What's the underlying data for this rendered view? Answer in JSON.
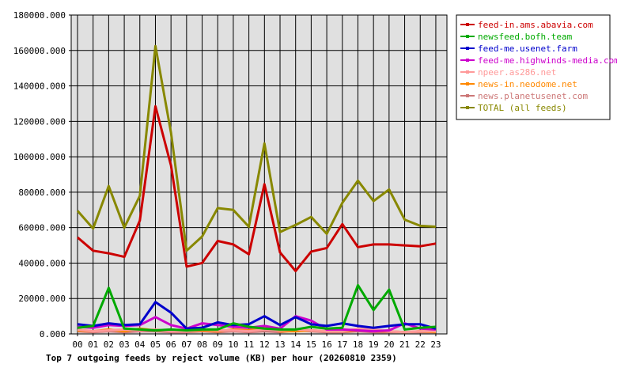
{
  "chart_data": {
    "type": "line",
    "title": "Top 7 outgoing feeds by reject volume (KB) per hour (20260810 2359)",
    "xlabel": "",
    "ylabel": "",
    "ylim": [
      0,
      180000
    ],
    "yticks": [
      "0.000",
      "20000.000",
      "40000.000",
      "60000.000",
      "80000.000",
      "100000.000",
      "120000.000",
      "140000.000",
      "160000.000",
      "180000.000"
    ],
    "x": [
      "00",
      "01",
      "02",
      "03",
      "04",
      "05",
      "06",
      "07",
      "08",
      "09",
      "10",
      "11",
      "12",
      "13",
      "14",
      "15",
      "16",
      "17",
      "18",
      "19",
      "20",
      "21",
      "22",
      "23"
    ],
    "grid": true,
    "legend_position": "right",
    "series": [
      {
        "name": "feed-in.ams.abavia.com",
        "color": "#cc0000",
        "values": [
          54500,
          47000,
          45500,
          43500,
          64000,
          128500,
          95000,
          38000,
          40000,
          52500,
          50500,
          45000,
          84500,
          46000,
          35500,
          46500,
          48500,
          62000,
          49000,
          50500,
          50500,
          50000,
          49500,
          51000
        ]
      },
      {
        "name": "newsfeed.bofh.team",
        "color": "#00aa00",
        "values": [
          3500,
          4500,
          26000,
          3000,
          2500,
          2000,
          2500,
          2000,
          2500,
          2500,
          6000,
          4000,
          3000,
          2500,
          2500,
          4000,
          3000,
          3500,
          27500,
          13500,
          25000,
          2500,
          3500,
          4000
        ]
      },
      {
        "name": "feed-me.usenet.farm",
        "color": "#0000cc",
        "values": [
          5500,
          4500,
          6000,
          5000,
          5500,
          18000,
          12000,
          3000,
          3500,
          6500,
          5000,
          5500,
          10000,
          5000,
          9500,
          5500,
          4500,
          6000,
          4500,
          3500,
          4500,
          5500,
          5500,
          3000
        ]
      },
      {
        "name": "feed-me.highwinds-media.com",
        "color": "#cc00cc",
        "values": [
          4000,
          3500,
          5000,
          4500,
          5000,
          9500,
          5000,
          3000,
          6000,
          5000,
          4000,
          3500,
          4500,
          3000,
          10000,
          7500,
          2500,
          2500,
          2000,
          1500,
          2000,
          6000,
          3000,
          2500
        ]
      },
      {
        "name": "npeer.as286.net",
        "color": "#ff9999",
        "values": [
          2500,
          1500,
          2000,
          2500,
          2000,
          2500,
          1500,
          1500,
          2500,
          2000,
          2000,
          1500,
          2500,
          2000,
          2500,
          2000,
          1500,
          1500,
          3000,
          2500,
          1500,
          1000,
          1500,
          1500
        ]
      },
      {
        "name": "news-in.neodome.net",
        "color": "#ff8800",
        "values": [
          2000,
          1500,
          2500,
          1500,
          3000,
          2000,
          2000,
          1500,
          2000,
          1500,
          2500,
          2000,
          4000,
          1500,
          1500,
          2000,
          1500,
          1500,
          2000,
          1500,
          1500,
          1000,
          1500,
          1000
        ]
      },
      {
        "name": "news.planetusenet.com",
        "color": "#cc7777",
        "values": [
          1500,
          1000,
          1500,
          1000,
          1500,
          1500,
          1000,
          1000,
          1500,
          1000,
          1500,
          1000,
          1500,
          1000,
          2000,
          1500,
          1000,
          1000,
          1500,
          1000,
          1000,
          1000,
          1000,
          1000
        ]
      },
      {
        "name": "TOTAL (all feeds)",
        "color": "#888800",
        "values": [
          69500,
          59500,
          83500,
          60000,
          78000,
          162500,
          113500,
          47000,
          55000,
          71000,
          70000,
          60500,
          107500,
          57500,
          61500,
          66000,
          56500,
          74000,
          86500,
          75000,
          81500,
          64500,
          61000,
          60500
        ]
      }
    ]
  }
}
